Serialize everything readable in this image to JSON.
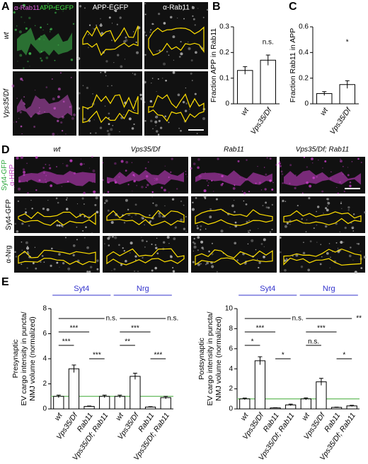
{
  "panel_labels": [
    "A",
    "B",
    "C",
    "D",
    "E"
  ],
  "panel_a": {
    "merge_label": [
      "α-Rab11",
      "APP-EGFP"
    ],
    "column_labels": [
      "APP-EGFP",
      "α-Rab11"
    ],
    "row_labels": [
      "wt",
      "Vps35/Df"
    ]
  },
  "panel_d": {
    "column_labels": [
      "wt",
      "Vps35/Df",
      "Rab11",
      "Vps35/Df; Rab11"
    ],
    "merge_label": [
      "Syt4-GFP",
      "α-HRP"
    ],
    "row_labels": [
      "Syt4-GFP",
      "α-Nrg"
    ]
  },
  "chart_data": [
    {
      "type": "bar",
      "ylabel": [
        "Fraction APP in Rab11"
      ],
      "categories": [
        "wt",
        "Vps35/Df"
      ],
      "values": [
        0.13,
        0.17
      ],
      "errors": [
        0.015,
        0.02
      ],
      "color": "#ffffff",
      "ylim": [
        0,
        0.3
      ],
      "yticks": [
        0,
        0.1,
        0.2,
        0.3
      ],
      "annotations": [
        {
          "category": "Vps35/Df",
          "text": "n.s."
        }
      ]
    },
    {
      "type": "bar",
      "ylabel": [
        "Fraction Rab11 in APP"
      ],
      "categories": [
        "wt",
        "Vps35/Df"
      ],
      "values": [
        0.08,
        0.15
      ],
      "errors": [
        0.015,
        0.03
      ],
      "color": "#ffffff",
      "ylim": [
        0,
        0.6
      ],
      "yticks": [
        0,
        0.2,
        0.4,
        0.6
      ],
      "annotations": [
        {
          "category": "Vps35/Df",
          "text": "*"
        }
      ]
    },
    {
      "type": "bar",
      "ylabel": [
        "Presynaptic",
        "EV cargo intensity in puncta/",
        "NMJ volume (normalized)"
      ],
      "color": "#ffffff",
      "header_color": "#3333cc",
      "reference_line": 1,
      "reference_color": "#7cc576",
      "ylim": [
        0,
        8
      ],
      "yticks": [
        0,
        2,
        4,
        6,
        8
      ],
      "groups": [
        {
          "name": "Syt4",
          "categories": [
            "wt",
            "Vps35/Df",
            "Rab11",
            "Vps35/Df; Rab11"
          ],
          "values": [
            1.0,
            3.2,
            0.2,
            1.0
          ],
          "errors": [
            0.1,
            0.3,
            0.03,
            0.1
          ],
          "comparisons": [
            {
              "from": "wt",
              "to": "Vps35/Df; Rab11",
              "label": "n.s."
            },
            {
              "from": "wt",
              "to": "Rab11",
              "label": "***"
            },
            {
              "from": "wt",
              "to": "Vps35/Df",
              "label": "***"
            },
            {
              "from": "Rab11",
              "to": "Vps35/Df; Rab11",
              "label": "***"
            }
          ]
        },
        {
          "name": "Nrg",
          "categories": [
            "wt",
            "Vps35/Df",
            "Rab11",
            "Vps35/Df; Rab11"
          ],
          "values": [
            1.0,
            2.6,
            0.15,
            0.9
          ],
          "errors": [
            0.1,
            0.25,
            0.03,
            0.1
          ],
          "comparisons": [
            {
              "from": "wt",
              "to": "Vps35/Df; Rab11",
              "label": "n.s."
            },
            {
              "from": "wt",
              "to": "Rab11",
              "label": "***"
            },
            {
              "from": "wt",
              "to": "Vps35/Df",
              "label": "**"
            },
            {
              "from": "Rab11",
              "to": "Vps35/Df; Rab11",
              "label": "***"
            }
          ]
        }
      ]
    },
    {
      "type": "bar",
      "ylabel": [
        "Postsynaptic",
        "EV cargo intensity in puncta/",
        "NMJ volume (normalized)"
      ],
      "color": "#ffffff",
      "header_color": "#3333cc",
      "reference_line": 1,
      "reference_color": "#7cc576",
      "ylim": [
        0,
        10
      ],
      "yticks": [
        0,
        2,
        4,
        6,
        8,
        10
      ],
      "groups": [
        {
          "name": "Syt4",
          "categories": [
            "wt",
            "Vps35/Df",
            "Rab11",
            "Vps35/Df; Rab11"
          ],
          "values": [
            1.0,
            4.8,
            0.1,
            0.4
          ],
          "errors": [
            0.08,
            0.4,
            0.02,
            0.08
          ],
          "comparisons": [
            {
              "from": "wt",
              "to": "Vps35/Df; Rab11",
              "label": "n.s."
            },
            {
              "from": "wt",
              "to": "Rab11",
              "label": "***"
            },
            {
              "from": "wt",
              "to": "Vps35/Df",
              "label": "*"
            },
            {
              "from": "Rab11",
              "to": "Vps35/Df; Rab11",
              "label": "*"
            }
          ]
        },
        {
          "name": "Nrg",
          "categories": [
            "wt",
            "Vps35/Df",
            "Rab11",
            "Vps35/Df; Rab11"
          ],
          "values": [
            1.0,
            2.7,
            0.15,
            0.3
          ],
          "errors": [
            0.1,
            0.35,
            0.03,
            0.06
          ],
          "comparisons": [
            {
              "from": "wt",
              "to": "Vps35/Df; Rab11",
              "label": "**"
            },
            {
              "from": "wt",
              "to": "Rab11",
              "label": "***"
            },
            {
              "from": "wt",
              "to": "Vps35/Df",
              "label": "n.s."
            },
            {
              "from": "Rab11",
              "to": "Vps35/Df; Rab11",
              "label": "*"
            }
          ]
        }
      ]
    }
  ]
}
